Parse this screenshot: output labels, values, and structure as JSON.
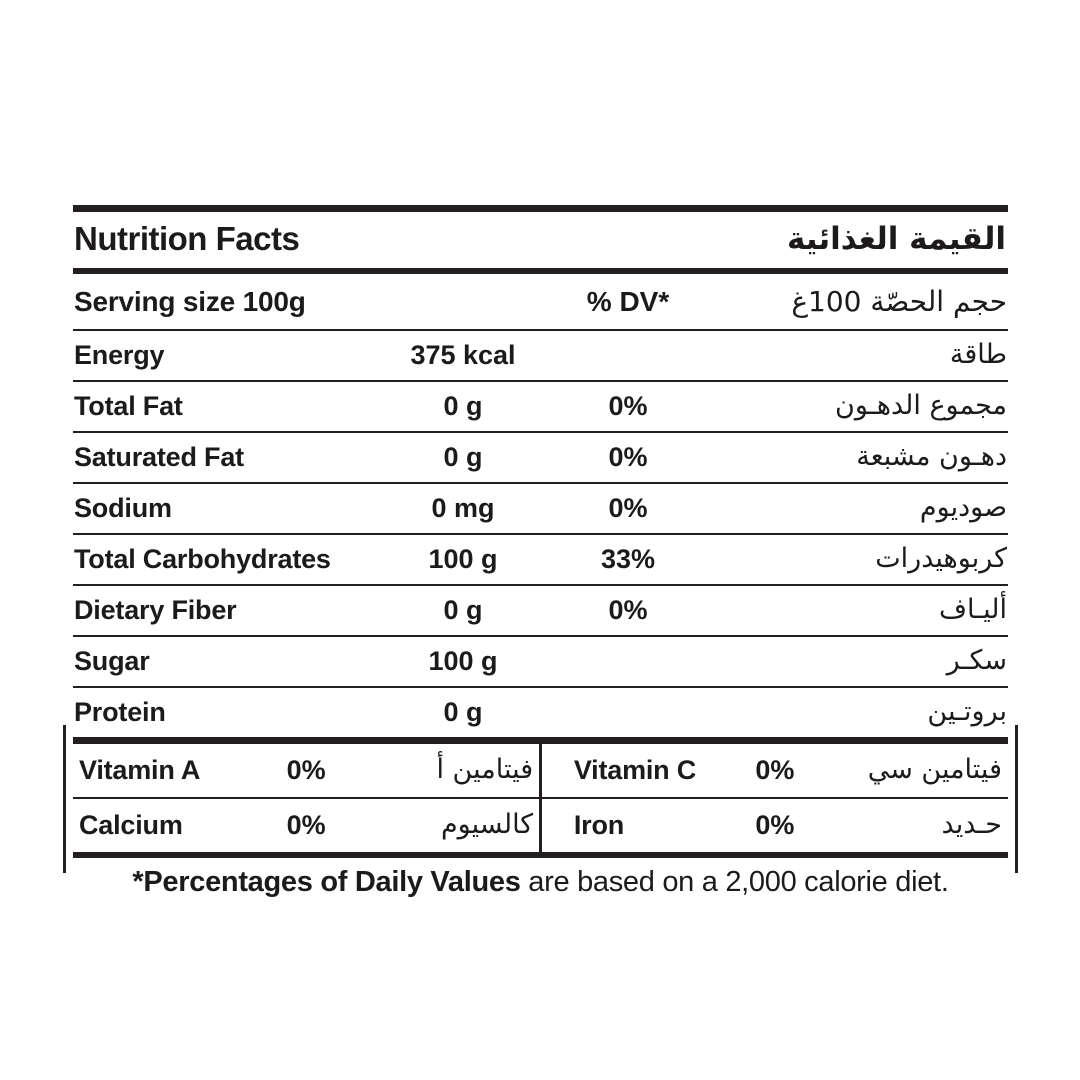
{
  "header": {
    "title_en": "Nutrition Facts",
    "title_ar": "القيمة الغذائية"
  },
  "serving": {
    "label_en": "Serving size 100g",
    "dv_header": "% DV*",
    "label_ar": "حجم الحصّة 100غ"
  },
  "rows": [
    {
      "en": "Energy",
      "amount": "375 kcal",
      "dv": "",
      "ar": "طاقة"
    },
    {
      "en": "Total Fat",
      "amount": "0 g",
      "dv": "0%",
      "ar": "مجموع الدهـون"
    },
    {
      "en": "Saturated Fat",
      "amount": "0 g",
      "dv": "0%",
      "ar": "دهـون مشبعة"
    },
    {
      "en": "Sodium",
      "amount": "0 mg",
      "dv": "0%",
      "ar": "صوديوم"
    },
    {
      "en": "Total Carbohydrates",
      "amount": "100 g",
      "dv": "33%",
      "ar": "كربوهيدرات"
    },
    {
      "en": "Dietary Fiber",
      "amount": "0 g",
      "dv": "0%",
      "ar": "أليـاف"
    },
    {
      "en": "Sugar",
      "amount": "100 g",
      "dv": "",
      "ar": "سكـر"
    },
    {
      "en": "Protein",
      "amount": "0 g",
      "dv": "",
      "ar": "بروتـين"
    }
  ],
  "micros": {
    "vitamin_a": {
      "en": "Vitamin A",
      "dv": "0%",
      "ar": "فيتامين أ"
    },
    "vitamin_c": {
      "en": "Vitamin C",
      "dv": "0%",
      "ar": "فيتامين سي"
    },
    "calcium": {
      "en": "Calcium",
      "dv": "0%",
      "ar": "كالسيوم"
    },
    "iron": {
      "en": "Iron",
      "dv": "0%",
      "ar": "حـديد"
    }
  },
  "footnote": {
    "bold": "*Percentages of Daily Values",
    "rest": " are based on a 2,000 calorie diet."
  },
  "colors": {
    "text": "#1d1a1b",
    "rule": "#231f20",
    "background": "#ffffff"
  }
}
